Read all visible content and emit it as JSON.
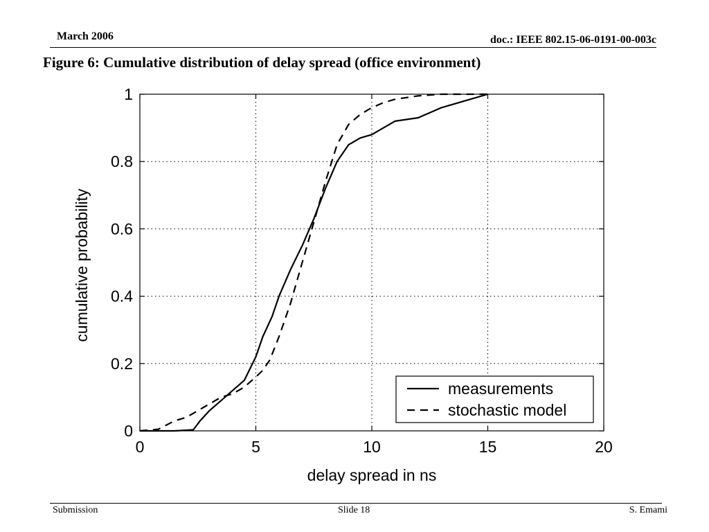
{
  "header": {
    "date": "March 2006",
    "doc_id": "doc.: IEEE 802.15-06-0191-00-003c"
  },
  "slide_title": "Figure 6: Cumulative distribution of delay spread (office environment)",
  "footer": {
    "left": "Submission",
    "center": "Slide 18",
    "right": "S. Emami"
  },
  "chart_data": {
    "type": "line",
    "title": "",
    "xlabel": "delay spread in ns",
    "ylabel": "cumulative probability",
    "xlim": [
      0,
      20
    ],
    "ylim": [
      0,
      1
    ],
    "xticks": [
      0,
      5,
      10,
      15,
      20
    ],
    "yticks": [
      0,
      0.2,
      0.4,
      0.6,
      0.8,
      1
    ],
    "ytick_labels": [
      "0",
      "0.2",
      "0.4",
      "0.6",
      "0.8",
      "1"
    ],
    "grid": true,
    "grid_style": "dotted",
    "legend_position": "bottom-right",
    "series": [
      {
        "name": "measurements",
        "style": "solid",
        "color": "#000000",
        "x": [
          0,
          1.5,
          2.3,
          2.6,
          3.0,
          3.5,
          4.0,
          4.5,
          5.0,
          5.3,
          5.7,
          6.0,
          6.5,
          7.0,
          7.5,
          8.0,
          8.5,
          9.0,
          9.5,
          10.0,
          10.5,
          11.0,
          12.0,
          13.0,
          14.0,
          15.0
        ],
        "y": [
          0,
          0,
          0.003,
          0.03,
          0.06,
          0.09,
          0.12,
          0.15,
          0.22,
          0.28,
          0.34,
          0.4,
          0.48,
          0.55,
          0.63,
          0.72,
          0.8,
          0.85,
          0.87,
          0.88,
          0.9,
          0.92,
          0.93,
          0.96,
          0.98,
          1.0
        ]
      },
      {
        "name": "stochastic model",
        "style": "dashed",
        "color": "#000000",
        "x": [
          0,
          0.8,
          1.5,
          2.0,
          2.5,
          3.0,
          3.5,
          4.0,
          4.5,
          5.0,
          5.3,
          5.6,
          6.0,
          6.5,
          7.0,
          7.5,
          8.0,
          8.5,
          9.0,
          9.5,
          10.0,
          10.5,
          11.0,
          12.0,
          13.0,
          15.0
        ],
        "y": [
          0,
          0.005,
          0.03,
          0.04,
          0.06,
          0.08,
          0.1,
          0.11,
          0.13,
          0.16,
          0.18,
          0.21,
          0.28,
          0.38,
          0.5,
          0.62,
          0.74,
          0.85,
          0.91,
          0.94,
          0.96,
          0.975,
          0.985,
          0.995,
          1.0,
          1.0
        ]
      }
    ]
  }
}
